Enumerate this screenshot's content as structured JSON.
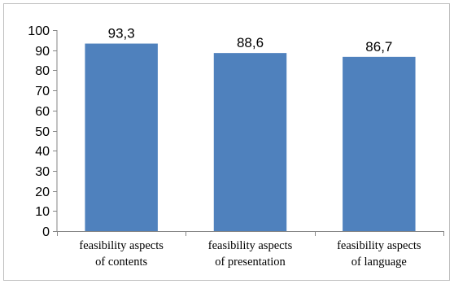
{
  "chart_data": {
    "type": "bar",
    "categories": [
      [
        "feasibility aspects",
        "of contents"
      ],
      [
        "feasibility aspects",
        "of presentation"
      ],
      [
        "feasibility aspects",
        "of language"
      ]
    ],
    "values": [
      93.3,
      88.6,
      86.7
    ],
    "value_labels": [
      "93,3",
      "88,6",
      "86,7"
    ],
    "ylim": [
      0,
      100
    ],
    "yticks": [
      0,
      10,
      20,
      30,
      40,
      50,
      60,
      70,
      80,
      90,
      100
    ],
    "grid": false,
    "legend": "none",
    "bar_color": "#4f81bd",
    "axis_color": "#868686"
  }
}
